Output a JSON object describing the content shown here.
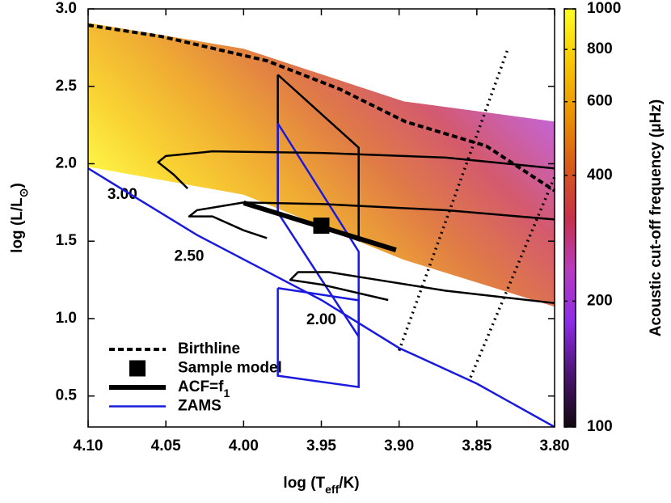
{
  "chart_data": {
    "type": "line",
    "xlabel": [
      "log (T",
      "eff",
      "/K)"
    ],
    "ylabel": [
      "log (L/L",
      "⊙",
      ")"
    ],
    "xlim": [
      4.1,
      3.8
    ],
    "xticks": [
      {
        "value": 4.1,
        "label": "4.10"
      },
      4.05,
      {
        "value": 4.0,
        "label": "4.00"
      },
      3.95,
      {
        "value": 3.9,
        "label": "3.90"
      },
      3.85,
      {
        "value": 3.8,
        "label": "3.80"
      }
    ],
    "ylim": [
      0.3,
      3.0
    ],
    "yticks": [
      0.5,
      {
        "value": 1.0,
        "label": "1.0"
      },
      1.5,
      {
        "value": 2.0,
        "label": "2.0"
      },
      2.5,
      {
        "value": 3.0,
        "label": "3.0"
      }
    ],
    "series": [
      {
        "name": "Birthline",
        "color": "#000000",
        "style": "dashed",
        "x": [
          4.1,
          4.053,
          3.985,
          3.938,
          3.896,
          3.844,
          3.8
        ],
        "y": [
          2.895,
          2.822,
          2.665,
          2.481,
          2.272,
          2.115,
          1.826
        ]
      },
      {
        "name": "Sample model",
        "color": "#000000",
        "style": "square",
        "x": [
          3.95
        ],
        "y": [
          1.6
        ]
      },
      {
        "name": [
          "ACF=f",
          "1"
        ],
        "color": "#000000",
        "style": "thick",
        "x": [
          4.0,
          3.902
        ],
        "y": [
          1.747,
          1.443
        ]
      },
      {
        "name": "ZAMS",
        "color": "#1a1adc",
        "style": "solid",
        "x": [
          4.1,
          4.03,
          3.95,
          3.9,
          3.85,
          3.8
        ],
        "y": [
          1.97,
          1.54,
          1.12,
          0.81,
          0.58,
          0.3
        ]
      }
    ],
    "tracks": [
      {
        "label": "3.00",
        "label_x": 4.078,
        "label_y": 1.8,
        "x": [
          3.8,
          3.87,
          3.95,
          4.02,
          4.05,
          4.055,
          4.045,
          4.036
        ],
        "y": [
          1.97,
          2.04,
          2.07,
          2.08,
          2.05,
          2.01,
          1.93,
          1.84
        ]
      },
      {
        "label": "2.50",
        "label_x": 4.035,
        "label_y": 1.4,
        "x": [
          3.8,
          3.87,
          3.95,
          4.0,
          4.03,
          4.035,
          4.02,
          4.0,
          3.985
        ],
        "y": [
          1.64,
          1.7,
          1.74,
          1.75,
          1.7,
          1.66,
          1.66,
          1.57,
          1.52
        ]
      },
      {
        "label": "2.00",
        "label_x": 3.95,
        "label_y": 0.99,
        "x": [
          3.8,
          3.87,
          3.92,
          3.945,
          3.965,
          3.97,
          3.95,
          3.907
        ],
        "y": [
          1.1,
          1.18,
          1.26,
          1.3,
          1.3,
          1.25,
          1.22,
          1.12
        ]
      }
    ],
    "shapes": [
      {
        "color": "#000000",
        "x": [
          3.978,
          3.978,
          3.926,
          3.926,
          3.978
        ],
        "y": [
          2.575,
          1.685,
          1.506,
          2.104,
          2.575
        ]
      },
      {
        "color": "#1a1adc",
        "x": [
          3.978,
          3.926,
          3.926,
          3.978,
          3.978
        ],
        "y": [
          2.261,
          1.433,
          0.883,
          1.685,
          2.261
        ]
      },
      {
        "color": "#1a1adc",
        "x": [
          3.978,
          3.926,
          3.926,
          3.978,
          3.978
        ],
        "y": [
          1.197,
          1.118,
          0.558,
          0.631,
          1.197
        ]
      }
    ],
    "dotted_lines": [
      {
        "color": "#000000",
        "x": [
          3.9,
          3.83
        ],
        "y": [
          0.793,
          2.743
        ]
      },
      {
        "color": "#000000",
        "x": [
          3.854,
          3.8
        ],
        "y": [
          0.621,
          1.915
        ]
      }
    ],
    "region": {
      "x": [
        4.1,
        4.0,
        3.897,
        3.8,
        3.8,
        3.897,
        4.0,
        4.1
      ],
      "y": [
        2.91,
        2.743,
        2.403,
        2.272,
        1.077,
        1.38,
        1.8,
        1.98
      ]
    },
    "colorbar": {
      "label": "Acoustic cut-off frequency (μHz)",
      "log": true,
      "lim": [
        100,
        1000
      ],
      "ticks": [
        100,
        200,
        400,
        600,
        800,
        1000
      ],
      "colors": [
        "#120812",
        "#4a1470",
        "#8c2ce8",
        "#b83cc0",
        "#c8304a",
        "#d85a18",
        "#eb9400",
        "#f8c800",
        "#ffff20"
      ]
    }
  }
}
